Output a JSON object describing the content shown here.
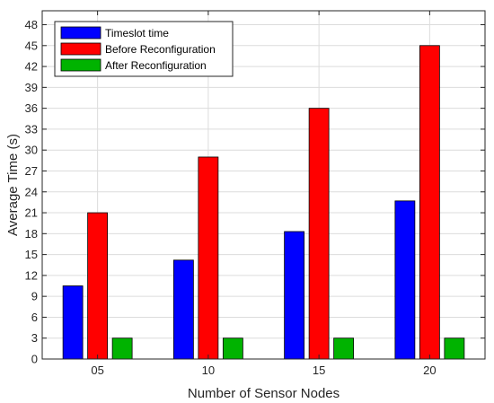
{
  "chart_data": {
    "type": "bar",
    "title": "",
    "xlabel": "Number of Sensor Nodes",
    "ylabel": "Average Time (s)",
    "categories": [
      "05",
      "10",
      "15",
      "20"
    ],
    "ylim": [
      0,
      50
    ],
    "yticks": [
      0,
      3,
      6,
      9,
      12,
      15,
      18,
      21,
      24,
      27,
      30,
      33,
      36,
      39,
      42,
      45,
      48
    ],
    "grid": true,
    "legend_position": "top-left",
    "series": [
      {
        "name": "Timeslot time",
        "color": "#0000ff",
        "values": [
          10.5,
          14.2,
          18.3,
          22.7
        ]
      },
      {
        "name": "Before Reconfiguration",
        "color": "#ff0000",
        "values": [
          21,
          29,
          36,
          45
        ]
      },
      {
        "name": "After Reconfiguration",
        "color": "#00b300",
        "values": [
          3,
          3,
          3,
          3
        ]
      }
    ]
  }
}
